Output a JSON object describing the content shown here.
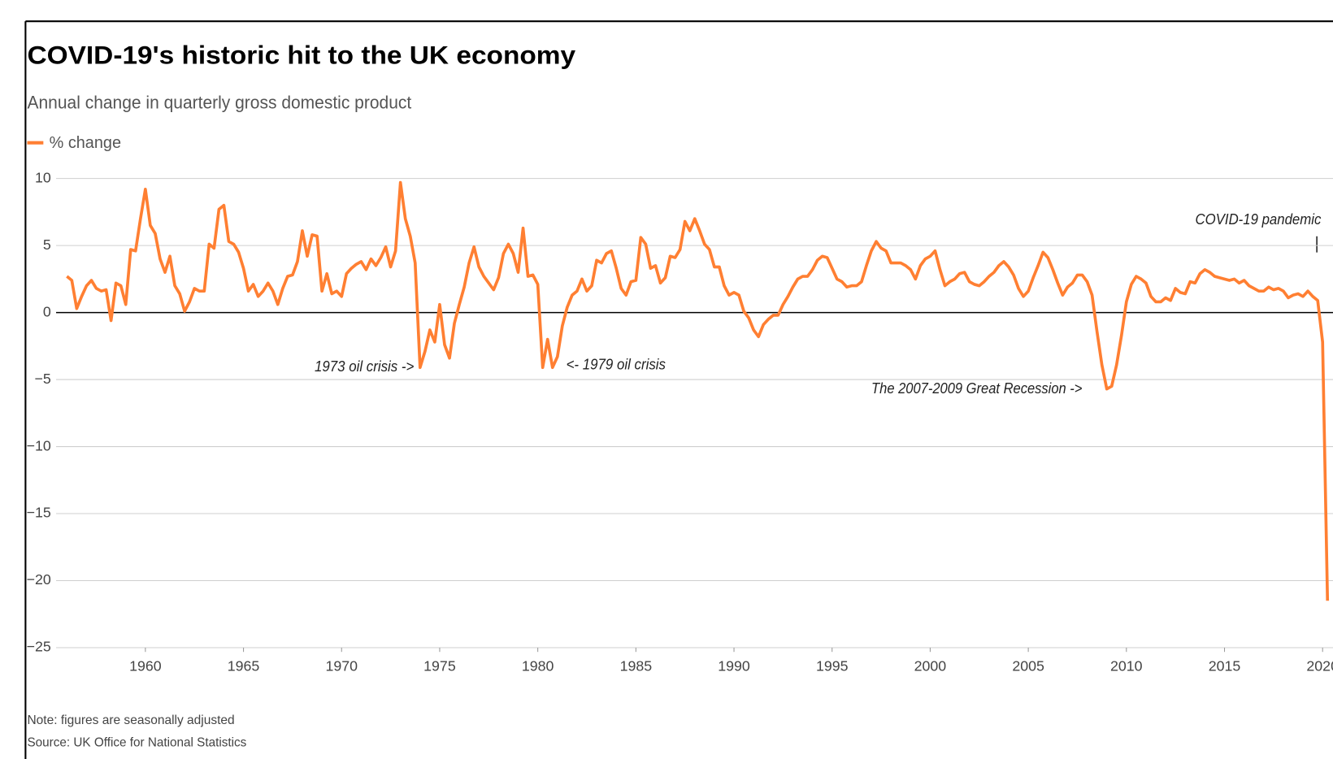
{
  "chart_data": {
    "type": "line",
    "title": "COVID-19's historic hit to the UK economy",
    "subtitle": "Annual change in quarterly gross domestic product",
    "note": "Note: figures are seasonally adjusted",
    "source": "Source: UK Office for National Statistics",
    "annotations": [
      "1973 oil crisis ->",
      "<- 1979 oil crisis",
      "The 2007-2009 Great Recession ->",
      "COVID-19 pandemic"
    ],
    "grid": true,
    "legend": "top-left",
    "xlim": [
      1955.45,
      2020.53
    ],
    "ylim": [
      -25,
      10
    ],
    "xticks": [
      1960,
      1965,
      1970,
      1975,
      1980,
      1985,
      1990,
      1995,
      2000,
      2005,
      2010,
      2015,
      2020
    ],
    "yticks": [
      10,
      5,
      0,
      {
        "value": -5,
        "label": "−5"
      },
      {
        "value": -10,
        "label": "−10"
      },
      {
        "value": -15,
        "label": "−15"
      },
      {
        "value": -20,
        "label": "−20"
      },
      {
        "value": -25,
        "label": "−25"
      }
    ],
    "x": [
      1956,
      1956.25,
      1956.5,
      1956.75,
      1957,
      1957.25,
      1957.5,
      1957.75,
      1958,
      1958.25,
      1958.5,
      1958.75,
      1959,
      1959.25,
      1959.5,
      1959.75,
      1960,
      1960.25,
      1960.5,
      1960.75,
      1961,
      1961.25,
      1961.5,
      1961.75,
      1962,
      1962.25,
      1962.5,
      1962.75,
      1963,
      1963.25,
      1963.5,
      1963.75,
      1964,
      1964.25,
      1964.5,
      1964.75,
      1965,
      1965.25,
      1965.5,
      1965.75,
      1966,
      1966.25,
      1966.5,
      1966.75,
      1967,
      1967.25,
      1967.5,
      1967.75,
      1968,
      1968.25,
      1968.5,
      1968.75,
      1969,
      1969.25,
      1969.5,
      1969.75,
      1970,
      1970.25,
      1970.5,
      1970.75,
      1971,
      1971.25,
      1971.5,
      1971.75,
      1972,
      1972.25,
      1972.5,
      1972.75,
      1973,
      1973.25,
      1973.5,
      1973.75,
      1974,
      1974.25,
      1974.5,
      1974.75,
      1975,
      1975.25,
      1975.5,
      1975.75,
      1976,
      1976.25,
      1976.5,
      1976.75,
      1977,
      1977.25,
      1977.5,
      1977.75,
      1978,
      1978.25,
      1978.5,
      1978.75,
      1979,
      1979.25,
      1979.5,
      1979.75,
      1980,
      1980.25,
      1980.5,
      1980.75,
      1981,
      1981.25,
      1981.5,
      1981.75,
      1982,
      1982.25,
      1982.5,
      1982.75,
      1983,
      1983.25,
      1983.5,
      1983.75,
      1984,
      1984.25,
      1984.5,
      1984.75,
      1985,
      1985.25,
      1985.5,
      1985.75,
      1986,
      1986.25,
      1986.5,
      1986.75,
      1987,
      1987.25,
      1987.5,
      1987.75,
      1988,
      1988.25,
      1988.5,
      1988.75,
      1989,
      1989.25,
      1989.5,
      1989.75,
      1990,
      1990.25,
      1990.5,
      1990.75,
      1991,
      1991.25,
      1991.5,
      1991.75,
      1992,
      1992.25,
      1992.5,
      1992.75,
      1993,
      1993.25,
      1993.5,
      1993.75,
      1994,
      1994.25,
      1994.5,
      1994.75,
      1995,
      1995.25,
      1995.5,
      1995.75,
      1996,
      1996.25,
      1996.5,
      1996.75,
      1997,
      1997.25,
      1997.5,
      1997.75,
      1998,
      1998.25,
      1998.5,
      1998.75,
      1999,
      1999.25,
      1999.5,
      1999.75,
      2000,
      2000.25,
      2000.5,
      2000.75,
      2001,
      2001.25,
      2001.5,
      2001.75,
      2002,
      2002.25,
      2002.5,
      2002.75,
      2003,
      2003.25,
      2003.5,
      2003.75,
      2004,
      2004.25,
      2004.5,
      2004.75,
      2005,
      2005.25,
      2005.5,
      2005.75,
      2006,
      2006.25,
      2006.5,
      2006.75,
      2007,
      2007.25,
      2007.5,
      2007.75,
      2008,
      2008.25,
      2008.5,
      2008.75,
      2009,
      2009.25,
      2009.5,
      2009.75,
      2010,
      2010.25,
      2010.5,
      2010.75,
      2011,
      2011.25,
      2011.5,
      2011.75,
      2012,
      2012.25,
      2012.5,
      2012.75,
      2013,
      2013.25,
      2013.5,
      2013.75,
      2014,
      2014.25,
      2014.5,
      2014.75,
      2015,
      2015.25,
      2015.5,
      2015.75,
      2016,
      2016.25,
      2016.5,
      2016.75,
      2017,
      2017.25,
      2017.5,
      2017.75,
      2018,
      2018.25,
      2018.5,
      2018.75,
      2019,
      2019.25,
      2019.5,
      2019.75,
      2020,
      2020.25
    ],
    "series": [
      {
        "name": "% change",
        "color": "#ff7f32",
        "values": [
          2.7,
          2.4,
          0.3,
          1.2,
          2.0,
          2.4,
          1.8,
          1.6,
          1.7,
          -0.6,
          2.2,
          2.0,
          0.6,
          4.7,
          4.6,
          7.0,
          9.2,
          6.5,
          5.9,
          4.0,
          3.0,
          4.2,
          2.0,
          1.4,
          0.1,
          0.8,
          1.8,
          1.6,
          1.6,
          5.1,
          4.8,
          7.7,
          8.0,
          5.3,
          5.1,
          4.5,
          3.3,
          1.6,
          2.1,
          1.2,
          1.6,
          2.2,
          1.6,
          0.6,
          1.8,
          2.7,
          2.8,
          3.8,
          6.1,
          4.2,
          5.8,
          5.7,
          1.6,
          2.9,
          1.4,
          1.6,
          1.2,
          2.9,
          3.3,
          3.6,
          3.8,
          3.2,
          4.0,
          3.5,
          4.1,
          4.9,
          3.4,
          4.6,
          9.7,
          7.0,
          5.7,
          3.7,
          -4.1,
          -2.9,
          -1.3,
          -2.2,
          0.6,
          -2.4,
          -3.4,
          -0.8,
          0.6,
          1.9,
          3.7,
          4.9,
          3.4,
          2.7,
          2.2,
          1.7,
          2.6,
          4.4,
          5.1,
          4.4,
          3.0,
          6.3,
          2.7,
          2.8,
          2.1,
          -4.1,
          -2.0,
          -4.1,
          -3.3,
          -1.0,
          0.4,
          1.3,
          1.6,
          2.5,
          1.6,
          2.0,
          3.9,
          3.7,
          4.4,
          4.6,
          3.3,
          1.8,
          1.3,
          2.3,
          2.4,
          5.6,
          5.1,
          3.3,
          3.5,
          2.2,
          2.6,
          4.2,
          4.1,
          4.7,
          6.8,
          6.1,
          7.0,
          6.1,
          5.1,
          4.7,
          3.4,
          3.4,
          2.0,
          1.3,
          1.5,
          1.3,
          0.1,
          -0.4,
          -1.3,
          -1.8,
          -0.9,
          -0.5,
          -0.2,
          -0.2,
          0.6,
          1.2,
          1.9,
          2.5,
          2.7,
          2.7,
          3.2,
          3.9,
          4.2,
          4.1,
          3.3,
          2.5,
          2.3,
          1.9,
          2.0,
          2.0,
          2.3,
          3.5,
          4.6,
          5.3,
          4.8,
          4.6,
          3.7,
          3.7,
          3.7,
          3.5,
          3.2,
          2.5,
          3.5,
          4.0,
          4.2,
          4.6,
          3.2,
          2.0,
          2.3,
          2.5,
          2.9,
          3.0,
          2.3,
          2.1,
          2.0,
          2.3,
          2.7,
          3.0,
          3.5,
          3.8,
          3.4,
          2.8,
          1.8,
          1.2,
          1.6,
          2.6,
          3.5,
          4.5,
          4.1,
          3.2,
          2.2,
          1.3,
          1.9,
          2.2,
          2.8,
          2.8,
          2.3,
          1.3,
          -1.4,
          -3.9,
          -5.7,
          -5.5,
          -3.9,
          -1.7,
          0.8,
          2.1,
          2.7,
          2.5,
          2.2,
          1.2,
          0.8,
          0.8,
          1.1,
          0.9,
          1.8,
          1.5,
          1.4,
          2.3,
          2.2,
          2.9,
          3.2,
          3.0,
          2.7,
          2.6,
          2.5,
          2.4,
          2.5,
          2.2,
          2.4,
          2.0,
          1.8,
          1.6,
          1.6,
          1.9,
          1.7,
          1.8,
          1.6,
          1.1,
          1.3,
          1.4,
          1.2,
          1.6,
          1.2,
          0.9,
          -2.2,
          -21.5
        ]
      }
    ]
  }
}
